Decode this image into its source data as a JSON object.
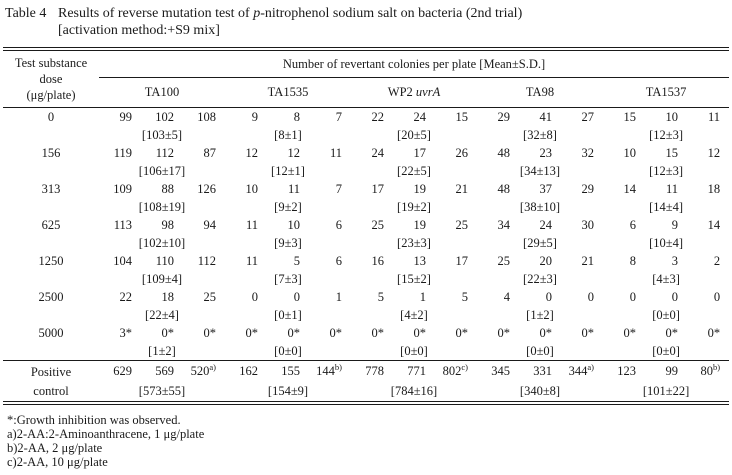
{
  "title": {
    "label": "Table 4",
    "pre": "Results of reverse mutation test of ",
    "em": "p",
    "post": "-nitrophenol sodium salt on bacteria (2nd trial)",
    "line2": "[activation method:+S9 mix]"
  },
  "table": {
    "dose_header": [
      "Test substance",
      "dose",
      "(μg/plate)"
    ],
    "span_header": "Number of revertant colonies per plate [Mean±S.D.]",
    "strains": [
      {
        "text": "TA100",
        "italic": ""
      },
      {
        "text": "TA1535",
        "italic": ""
      },
      {
        "text": "WP2 ",
        "italic": "uvrA"
      },
      {
        "text": "TA98",
        "italic": ""
      },
      {
        "text": "TA1537",
        "italic": ""
      }
    ],
    "rows": [
      {
        "dose": [
          "0"
        ],
        "groups": [
          {
            "v": [
              "99",
              "102",
              "108"
            ],
            "m": "[103±5]"
          },
          {
            "v": [
              "9",
              "8",
              "7"
            ],
            "m": "[8±1]"
          },
          {
            "v": [
              "22",
              "24",
              "15"
            ],
            "m": "[20±5]"
          },
          {
            "v": [
              "29",
              "41",
              "27"
            ],
            "m": "[32±8]"
          },
          {
            "v": [
              "15",
              "10",
              "11"
            ],
            "m": "[12±3]"
          }
        ]
      },
      {
        "dose": [
          "156"
        ],
        "groups": [
          {
            "v": [
              "119",
              "112",
              "87"
            ],
            "m": "[106±17]"
          },
          {
            "v": [
              "12",
              "12",
              "11"
            ],
            "m": "[12±1]"
          },
          {
            "v": [
              "24",
              "17",
              "26"
            ],
            "m": "[22±5]"
          },
          {
            "v": [
              "48",
              "23",
              "32"
            ],
            "m": "[34±13]"
          },
          {
            "v": [
              "10",
              "15",
              "12"
            ],
            "m": "[12±3]"
          }
        ]
      },
      {
        "dose": [
          "313"
        ],
        "groups": [
          {
            "v": [
              "109",
              "88",
              "126"
            ],
            "m": "[108±19]"
          },
          {
            "v": [
              "10",
              "11",
              "7"
            ],
            "m": "[9±2]"
          },
          {
            "v": [
              "17",
              "19",
              "21"
            ],
            "m": "[19±2]"
          },
          {
            "v": [
              "48",
              "37",
              "29"
            ],
            "m": "[38±10]"
          },
          {
            "v": [
              "14",
              "11",
              "18"
            ],
            "m": "[14±4]"
          }
        ]
      },
      {
        "dose": [
          "625"
        ],
        "groups": [
          {
            "v": [
              "113",
              "98",
              "94"
            ],
            "m": "[102±10]"
          },
          {
            "v": [
              "11",
              "10",
              "6"
            ],
            "m": "[9±3]"
          },
          {
            "v": [
              "25",
              "19",
              "25"
            ],
            "m": "[23±3]"
          },
          {
            "v": [
              "34",
              "24",
              "30"
            ],
            "m": "[29±5]"
          },
          {
            "v": [
              "6",
              "9",
              "14"
            ],
            "m": "[10±4]"
          }
        ]
      },
      {
        "dose": [
          "1250"
        ],
        "groups": [
          {
            "v": [
              "104",
              "110",
              "112"
            ],
            "m": "[109±4]"
          },
          {
            "v": [
              "11",
              "5",
              "6"
            ],
            "m": "[7±3]"
          },
          {
            "v": [
              "16",
              "13",
              "17"
            ],
            "m": "[15±2]"
          },
          {
            "v": [
              "25",
              "20",
              "21"
            ],
            "m": "[22±3]"
          },
          {
            "v": [
              "8",
              "3",
              "2"
            ],
            "m": "[4±3]"
          }
        ]
      },
      {
        "dose": [
          "2500"
        ],
        "groups": [
          {
            "v": [
              "22",
              "18",
              "25"
            ],
            "m": "[22±4]"
          },
          {
            "v": [
              "0",
              "0",
              "1"
            ],
            "m": "[0±1]"
          },
          {
            "v": [
              "5",
              "1",
              "5"
            ],
            "m": "[4±2]"
          },
          {
            "v": [
              "4",
              "0",
              "0"
            ],
            "m": "[1±2]"
          },
          {
            "v": [
              "0",
              "0",
              "0"
            ],
            "m": "[0±0]"
          }
        ]
      },
      {
        "dose": [
          "5000"
        ],
        "groups": [
          {
            "v": [
              "3*",
              "0*",
              "0*"
            ],
            "m": "[1±2]"
          },
          {
            "v": [
              "0*",
              "0*",
              "0*"
            ],
            "m": "[0±0]"
          },
          {
            "v": [
              "0*",
              "0*",
              "0*"
            ],
            "m": "[0±0]"
          },
          {
            "v": [
              "0*",
              "0*",
              "0*"
            ],
            "m": "[0±0]"
          },
          {
            "v": [
              "0*",
              "0*",
              "0*"
            ],
            "m": "[0±0]"
          }
        ]
      },
      {
        "dose": [
          "Positive",
          "control"
        ],
        "pc": true,
        "rule_above": true,
        "groups": [
          {
            "v": [
              "629",
              "569",
              "520^a)"
            ],
            "m": "[573±55]"
          },
          {
            "v": [
              "162",
              "155",
              "144^b)"
            ],
            "m": "[154±9]"
          },
          {
            "v": [
              "778",
              "771",
              "802^c)"
            ],
            "m": "[784±16]"
          },
          {
            "v": [
              "345",
              "331",
              "344^a)"
            ],
            "m": "[340±8]"
          },
          {
            "v": [
              "123",
              "99",
              "80^b)"
            ],
            "m": "[101±22]"
          }
        ]
      }
    ]
  },
  "footnotes": [
    "*:Growth inhibition was observed.",
    "a)2-AA:2-Aminoanthracene, 1 μg/plate",
    "b)2-AA, 2 μg/plate",
    "c)2-AA, 10 μg/plate"
  ]
}
